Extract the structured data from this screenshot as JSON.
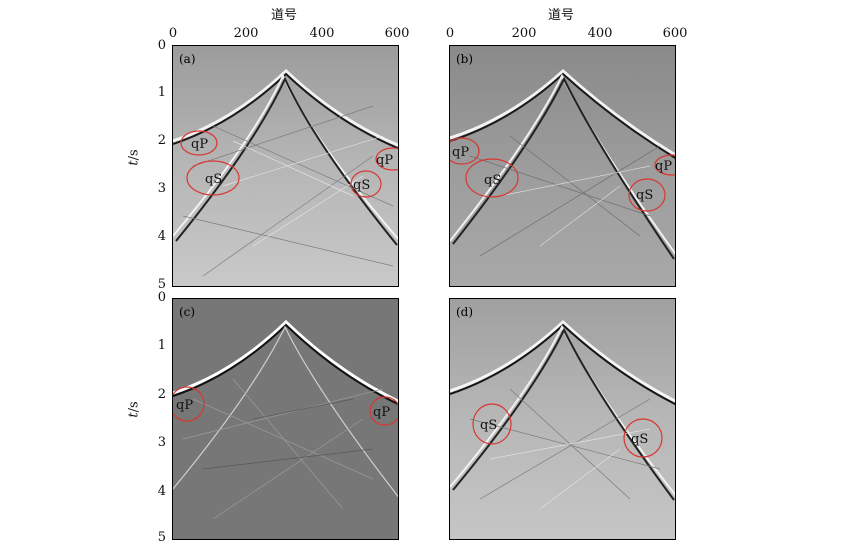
{
  "figure": {
    "top_axis_title": "道号",
    "x_ticks": [
      "0",
      "200",
      "400",
      "600"
    ],
    "y_axis_title_italic": "t",
    "y_axis_title_rest": "/s",
    "y_ticks": [
      "0",
      "1",
      "2",
      "3",
      "4",
      "5"
    ]
  },
  "panels": {
    "a": {
      "label": "(a)",
      "annotations": [
        {
          "text": "qP"
        },
        {
          "text": "qS"
        },
        {
          "text": "qS"
        },
        {
          "text": "qP"
        }
      ]
    },
    "b": {
      "label": "(b)",
      "annotations": [
        {
          "text": "qP"
        },
        {
          "text": "qS"
        },
        {
          "text": "qS"
        },
        {
          "text": "qP"
        }
      ]
    },
    "c": {
      "label": "(c)",
      "annotations": [
        {
          "text": "qP"
        },
        {
          "text": "qP"
        }
      ]
    },
    "d": {
      "label": "(d)",
      "annotations": [
        {
          "text": "qS"
        },
        {
          "text": "qS"
        }
      ]
    }
  },
  "colors": {
    "annotation_circle": "#d9362f",
    "panel_bg_a": "#9a9a9a",
    "panel_bg_b": "#8e8e8e",
    "panel_bg_c": "#7a7a7a",
    "panel_bg_d": "#a5a5a5"
  }
}
